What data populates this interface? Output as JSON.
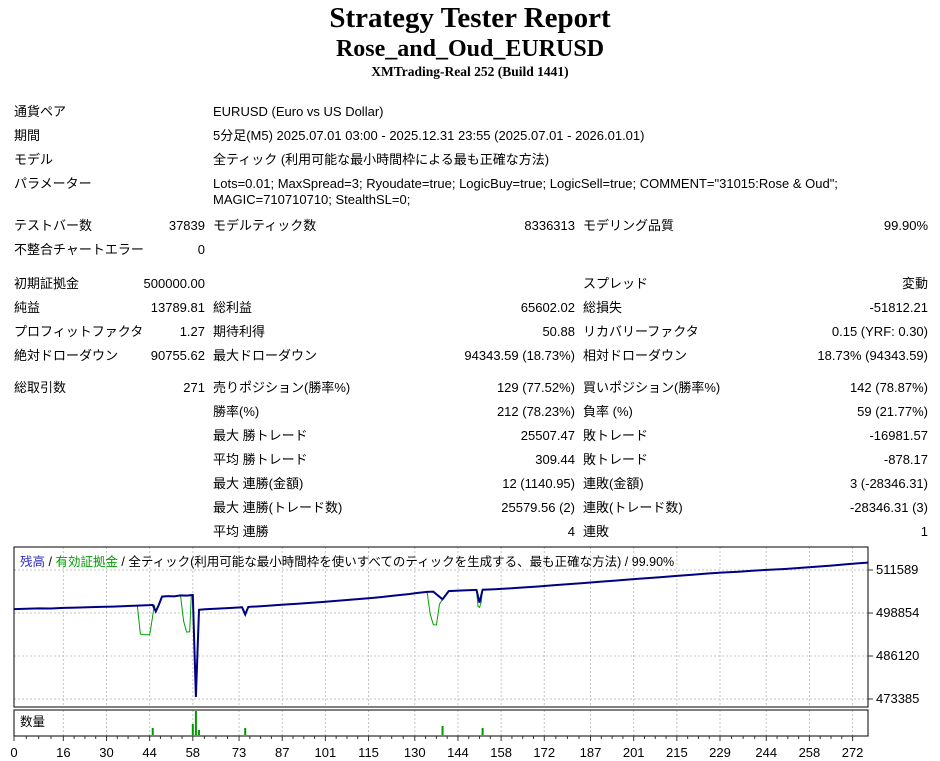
{
  "header": {
    "title": "Strategy Tester Report",
    "ea_name": "Rose_and_Oud_EURUSD",
    "server": "XMTrading-Real 252 (Build 1441)"
  },
  "info": {
    "rows": [
      {
        "label": "通貨ペア",
        "value": "EURUSD (Euro vs US Dollar)"
      },
      {
        "label": "期間",
        "value": "5分足(M5) 2025.07.01 03:00 - 2025.12.31 23:55 (2025.07.01 - 2026.01.01)"
      },
      {
        "label": "モデル",
        "value": "全ティック (利用可能な最小時間枠による最も正確な方法)"
      },
      {
        "label": "パラメーター",
        "value": "Lots=0.01; MaxSpread=3; Ryoudate=true; LogicBuy=true; LogicSell=true; COMMENT=\"31015:Rose & Oud\"; MAGIC=710710710; StealthSL=0;"
      }
    ]
  },
  "stats": {
    "rows": [
      {
        "c1l": "テストバー数",
        "c1v": "37839",
        "c2l": "モデルティック数",
        "c2v": "8336313",
        "c3l": "モデリング品質",
        "c3v": "99.90%"
      },
      {
        "c1l": "不整合チャートエラー",
        "c1v": "0",
        "c2l": "",
        "c2v": "",
        "c3l": "",
        "c3v": ""
      },
      {
        "c1l": "初期証拠金",
        "c1v": "500000.00",
        "c2l": "",
        "c2v": "",
        "c3l": "スプレッド",
        "c3v": "変動"
      },
      {
        "c1l": "純益",
        "c1v": "13789.81",
        "c2l": "総利益",
        "c2v": "65602.02",
        "c3l": "総損失",
        "c3v": "-51812.21"
      },
      {
        "c1l": "プロフィットファクタ",
        "c1v": "1.27",
        "c2l": "期待利得",
        "c2v": "50.88",
        "c3l": "リカバリーファクタ",
        "c3v": "0.15 (YRF: 0.30)"
      },
      {
        "c1l": "絶対ドローダウン",
        "c1v": "90755.62",
        "c2l": "最大ドローダウン",
        "c2v": "94343.59 (18.73%)",
        "c3l": "相対ドローダウン",
        "c3v": "18.73% (94343.59)"
      },
      {
        "c1l": "総取引数",
        "c1v": "271",
        "c2l": "売りポジション(勝率%)",
        "c2v": "129 (77.52%)",
        "c3l": "買いポジション(勝率%)",
        "c3v": "142 (78.87%)"
      },
      {
        "c1l": "",
        "c1v": "",
        "c2l": "勝率(%)",
        "c2v": "212 (78.23%)",
        "c3l": "負率 (%)",
        "c3v": "59 (21.77%)"
      },
      {
        "c1l": "",
        "c1v": "",
        "c2l": "最大 勝トレード",
        "c2v": "25507.47",
        "c3l": "敗トレード",
        "c3v": "-16981.57"
      },
      {
        "c1l": "",
        "c1v": "",
        "c2l": "平均 勝トレード",
        "c2v": "309.44",
        "c3l": "敗トレード",
        "c3v": "-878.17"
      },
      {
        "c1l": "",
        "c1v": "",
        "c2l": "最大 連勝(金額)",
        "c2v": "12 (1140.95)",
        "c3l": "連敗(金額)",
        "c3v": "3 (-28346.31)"
      },
      {
        "c1l": "",
        "c1v": "",
        "c2l": "最大 連勝(トレード数)",
        "c2v": "25579.56 (2)",
        "c3l": "連敗(トレード数)",
        "c3v": "-28346.31 (3)"
      },
      {
        "c1l": "",
        "c1v": "",
        "c2l": "平均 連勝",
        "c2v": "4",
        "c3l": "連敗",
        "c3v": "1"
      }
    ]
  },
  "chart_data": {
    "type": "line",
    "legend": {
      "balance_label": "残高",
      "equity_label": "有効証拠金",
      "separator": " / ",
      "model_text": "全ティック(利用可能な最小時間枠を使いすべてのティックを生成する、最も正確な方法)",
      "quality": "99.90%"
    },
    "volume_label": "数量",
    "x_ticks": [
      0,
      16,
      30,
      44,
      58,
      73,
      87,
      101,
      115,
      130,
      144,
      158,
      172,
      187,
      201,
      215,
      229,
      244,
      258,
      272
    ],
    "y_ticks": [
      511589,
      498854,
      486120,
      473385
    ],
    "x_range": [
      0,
      277
    ],
    "y_range": [
      471020,
      518400
    ],
    "series": [
      {
        "name": "有効証拠金",
        "color": "#00a000",
        "width": 1,
        "points": [
          [
            0,
            500000
          ],
          [
            4,
            500100
          ],
          [
            8,
            500210
          ],
          [
            12,
            500180
          ],
          [
            16,
            500360
          ],
          [
            20,
            500460
          ],
          [
            24,
            500540
          ],
          [
            28,
            500660
          ],
          [
            32,
            500760
          ],
          [
            36,
            500910
          ],
          [
            40,
            501050
          ],
          [
            41,
            492600
          ],
          [
            42,
            492400
          ],
          [
            44,
            492400
          ],
          [
            45,
            498000
          ],
          [
            45.5,
            501250
          ],
          [
            46,
            499300
          ],
          [
            47,
            501350
          ],
          [
            48,
            503700
          ],
          [
            50,
            503850
          ],
          [
            52,
            503760
          ],
          [
            54,
            504060
          ],
          [
            55,
            496500
          ],
          [
            56,
            493200
          ],
          [
            57,
            493300
          ],
          [
            57.5,
            504100
          ],
          [
            58,
            504200
          ],
          [
            59,
            473980
          ],
          [
            60,
            499800
          ],
          [
            62,
            499950
          ],
          [
            66,
            500150
          ],
          [
            70,
            500350
          ],
          [
            74,
            500550
          ],
          [
            75,
            498400
          ],
          [
            76,
            500650
          ],
          [
            80,
            500860
          ],
          [
            84,
            501110
          ],
          [
            88,
            501360
          ],
          [
            92,
            501610
          ],
          [
            96,
            501860
          ],
          [
            100,
            502110
          ],
          [
            104,
            502410
          ],
          [
            108,
            502710
          ],
          [
            112,
            503010
          ],
          [
            116,
            503310
          ],
          [
            120,
            503660
          ],
          [
            124,
            504060
          ],
          [
            128,
            504460
          ],
          [
            131,
            504810
          ],
          [
            134,
            505110
          ],
          [
            135,
            498500
          ],
          [
            136,
            495400
          ],
          [
            137,
            495300
          ],
          [
            138,
            501500
          ],
          [
            139,
            502900
          ],
          [
            141,
            505350
          ],
          [
            144,
            505500
          ],
          [
            147,
            505600
          ],
          [
            150,
            505700
          ],
          [
            150.5,
            500800
          ],
          [
            151,
            500500
          ],
          [
            151.5,
            501900
          ],
          [
            152,
            505750
          ],
          [
            156,
            505900
          ],
          [
            160,
            506100
          ],
          [
            165,
            506400
          ],
          [
            170,
            506700
          ],
          [
            175,
            507050
          ],
          [
            180,
            507400
          ],
          [
            185,
            507750
          ],
          [
            190,
            508100
          ],
          [
            195,
            508450
          ],
          [
            200,
            508800
          ],
          [
            205,
            509150
          ],
          [
            210,
            509500
          ],
          [
            215,
            509850
          ],
          [
            220,
            510200
          ],
          [
            225,
            510550
          ],
          [
            230,
            510850
          ],
          [
            235,
            511100
          ],
          [
            240,
            511400
          ],
          [
            245,
            511650
          ],
          [
            250,
            511900
          ],
          [
            255,
            512200
          ],
          [
            260,
            512550
          ],
          [
            265,
            512900
          ],
          [
            270,
            513300
          ],
          [
            274,
            513600
          ],
          [
            277,
            513790
          ]
        ]
      },
      {
        "name": "残高",
        "color": "#000082",
        "width": 2,
        "points": [
          [
            0,
            500000
          ],
          [
            4,
            500100
          ],
          [
            8,
            500210
          ],
          [
            12,
            500180
          ],
          [
            16,
            500360
          ],
          [
            20,
            500460
          ],
          [
            24,
            500540
          ],
          [
            28,
            500660
          ],
          [
            32,
            500760
          ],
          [
            36,
            500910
          ],
          [
            40,
            501050
          ],
          [
            44,
            501200
          ],
          [
            45,
            501250
          ],
          [
            46,
            499300
          ],
          [
            47,
            501350
          ],
          [
            48,
            503700
          ],
          [
            50,
            503850
          ],
          [
            52,
            503760
          ],
          [
            54,
            504060
          ],
          [
            56,
            504000
          ],
          [
            58,
            504200
          ],
          [
            59,
            473980
          ],
          [
            60,
            499800
          ],
          [
            62,
            499950
          ],
          [
            66,
            500150
          ],
          [
            70,
            500350
          ],
          [
            74,
            500550
          ],
          [
            75,
            498400
          ],
          [
            76,
            500650
          ],
          [
            80,
            500860
          ],
          [
            84,
            501110
          ],
          [
            88,
            501360
          ],
          [
            92,
            501610
          ],
          [
            96,
            501860
          ],
          [
            100,
            502110
          ],
          [
            104,
            502410
          ],
          [
            108,
            502710
          ],
          [
            112,
            503010
          ],
          [
            116,
            503310
          ],
          [
            120,
            503660
          ],
          [
            124,
            504060
          ],
          [
            128,
            504460
          ],
          [
            131,
            504810
          ],
          [
            134,
            505110
          ],
          [
            136,
            505200
          ],
          [
            139,
            502900
          ],
          [
            141,
            505350
          ],
          [
            144,
            505500
          ],
          [
            147,
            505600
          ],
          [
            150,
            505700
          ],
          [
            151,
            501900
          ],
          [
            152,
            505750
          ],
          [
            156,
            505900
          ],
          [
            160,
            506100
          ],
          [
            165,
            506400
          ],
          [
            170,
            506700
          ],
          [
            175,
            507050
          ],
          [
            180,
            507400
          ],
          [
            185,
            507750
          ],
          [
            190,
            508100
          ],
          [
            195,
            508450
          ],
          [
            200,
            508800
          ],
          [
            205,
            509150
          ],
          [
            210,
            509500
          ],
          [
            215,
            509850
          ],
          [
            220,
            510200
          ],
          [
            225,
            510550
          ],
          [
            230,
            510850
          ],
          [
            235,
            511100
          ],
          [
            240,
            511400
          ],
          [
            245,
            511650
          ],
          [
            250,
            511900
          ],
          [
            255,
            512200
          ],
          [
            260,
            512550
          ],
          [
            265,
            512900
          ],
          [
            270,
            513300
          ],
          [
            274,
            513600
          ],
          [
            277,
            513790
          ]
        ]
      }
    ],
    "volume_bars": [
      [
        45,
        7
      ],
      [
        58,
        11
      ],
      [
        59,
        24
      ],
      [
        60,
        5
      ],
      [
        75,
        7
      ],
      [
        139,
        9
      ],
      [
        152,
        7
      ]
    ],
    "colors": {
      "grid": "#c4c4c4",
      "border": "#000000",
      "volume": "#009900",
      "axis_tick": "#333333"
    }
  }
}
